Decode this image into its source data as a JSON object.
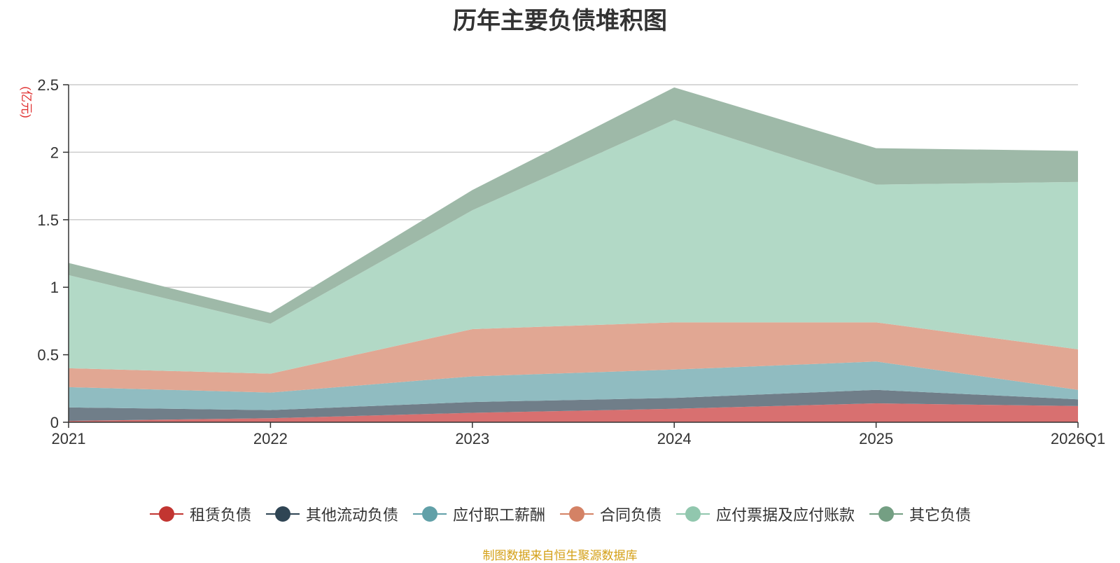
{
  "chart_data": {
    "type": "area",
    "stacked": true,
    "title": "历年主要负债堆积图",
    "ylabel": "(亿元)",
    "xlabel": "",
    "ylim": [
      0,
      2.5
    ],
    "yticks": [
      0,
      0.5,
      1,
      1.5,
      2,
      2.5
    ],
    "ytick_labels": [
      "0",
      "0.5",
      "1",
      "1.5",
      "2",
      "2.5"
    ],
    "categories": [
      "2021",
      "2022",
      "2023",
      "2024",
      "2025",
      "2026Q1"
    ],
    "series": [
      {
        "name": "租赁负债",
        "color": "#c23531",
        "fill": "#d87070",
        "values": [
          0.01,
          0.03,
          0.07,
          0.1,
          0.14,
          0.12
        ]
      },
      {
        "name": "其他流动负债",
        "color": "#2f4554",
        "fill": "#707e89",
        "values": [
          0.1,
          0.06,
          0.08,
          0.08,
          0.1,
          0.05
        ]
      },
      {
        "name": "应付职工薪酬",
        "color": "#61a0a8",
        "fill": "#90bcc1",
        "values": [
          0.15,
          0.13,
          0.19,
          0.21,
          0.21,
          0.07
        ]
      },
      {
        "name": "合同负债",
        "color": "#d48265",
        "fill": "#e1a793",
        "values": [
          0.14,
          0.14,
          0.35,
          0.35,
          0.29,
          0.3
        ]
      },
      {
        "name": "应付票据及应付账款",
        "color": "#91c7ae",
        "fill": "#b2d9c6",
        "values": [
          0.69,
          0.37,
          0.88,
          1.5,
          1.02,
          1.24
        ]
      },
      {
        "name": "其它负债",
        "color": "#749f83",
        "fill": "#9eb9a8",
        "values": [
          0.09,
          0.08,
          0.15,
          0.24,
          0.27,
          0.23
        ]
      }
    ],
    "legend_position": "bottom",
    "grid": true
  },
  "source_note": {
    "text": "制图数据来自恒生聚源数据库",
    "color": "#d4a017"
  },
  "colors": {
    "ylabel": "#e03030",
    "axis": "#333333",
    "grid": "#cccccc"
  }
}
